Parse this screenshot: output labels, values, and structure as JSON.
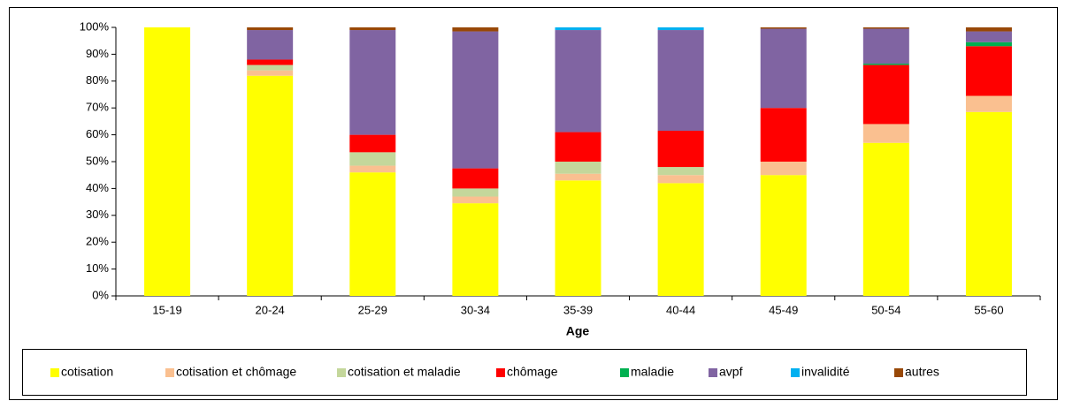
{
  "chart_data": {
    "type": "stacked_bar",
    "x_label": "Age",
    "categories": [
      "15-19",
      "20-24",
      "25-29",
      "30-34",
      "35-39",
      "40-44",
      "45-49",
      "50-54",
      "55-60"
    ],
    "series": [
      {
        "name": "cotisation",
        "color": "#ffff00",
        "values": [
          100,
          82,
          46,
          34.5,
          43,
          42,
          45,
          57,
          68.5
        ]
      },
      {
        "name": "cotisation et chômage",
        "color": "#fac090",
        "values": [
          0,
          2,
          2.5,
          2.5,
          2.5,
          3,
          5,
          7,
          6
        ]
      },
      {
        "name": "cotisation et maladie",
        "color": "#c4d79b",
        "values": [
          0,
          2,
          5,
          3,
          4.5,
          3,
          0,
          0,
          0
        ]
      },
      {
        "name": "chômage",
        "color": "#ff0000",
        "values": [
          0,
          2,
          6.5,
          7.5,
          11,
          13.5,
          20,
          22,
          18.5
        ]
      },
      {
        "name": "maladie",
        "color": "#00b050",
        "values": [
          0,
          0,
          0,
          0,
          0,
          0,
          0,
          0.5,
          1.5
        ]
      },
      {
        "name": "avpf",
        "color": "#8064a2",
        "values": [
          0,
          11,
          39,
          51,
          38,
          37.5,
          29.5,
          13,
          4
        ]
      },
      {
        "name": "invalidité",
        "color": "#00b0f0",
        "values": [
          0,
          0,
          0,
          0,
          1,
          1,
          0,
          0,
          0
        ]
      },
      {
        "name": "autres",
        "color": "#984807",
        "values": [
          0,
          1,
          1,
          1.5,
          0,
          0,
          0.5,
          0.5,
          1.5
        ]
      }
    ],
    "ylim": [
      0,
      100
    ],
    "yticks": [
      {
        "value": 0,
        "label": "0%"
      },
      {
        "value": 10,
        "label": "10%"
      },
      {
        "value": 20,
        "label": "20%"
      },
      {
        "value": 30,
        "label": "30%"
      },
      {
        "value": 40,
        "label": "40%"
      },
      {
        "value": 50,
        "label": "50%"
      },
      {
        "value": 60,
        "label": "60%"
      },
      {
        "value": 70,
        "label": "70%"
      },
      {
        "value": 80,
        "label": "80%"
      },
      {
        "value": 90,
        "label": "90%"
      },
      {
        "value": 100,
        "label": "100%"
      }
    ],
    "grid": false,
    "legend": "bottom"
  }
}
